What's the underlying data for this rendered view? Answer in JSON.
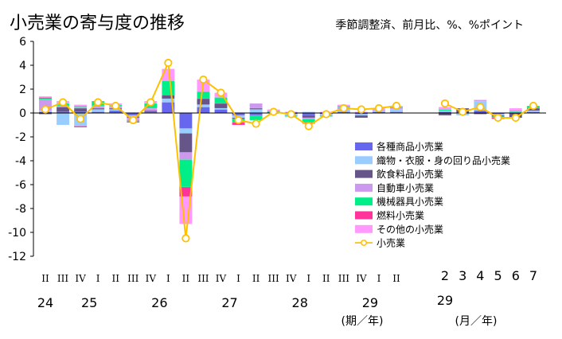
{
  "header": {
    "title": "小売業の寄与度の推移",
    "subtitle": "季節調整済、前月比、%、%ポイント"
  },
  "footer": {
    "period_unit": "(期／年)",
    "month_unit": "(月／年)"
  },
  "colors": {
    "各種商品小売業": "#6666ee",
    "織物・衣服・身の回り品小売業": "#99ccff",
    "飲食料品小売業": "#665588",
    "自動車小売業": "#cc99ee",
    "機械器具小売業": "#00ee88",
    "燃料小売業": "#ff3399",
    "その他の小売業": "#ff99ff",
    "小売業": "#ffc000"
  },
  "chart_data": {
    "type": "bar",
    "stacked": true,
    "ylim": [
      -12,
      6
    ],
    "yticks": [
      6,
      4,
      2,
      0,
      -2,
      -4,
      -6,
      -8,
      -10,
      -12
    ],
    "grid": false,
    "legend_position": "right-middle",
    "quarter_labels": [
      "II",
      "III",
      "IV",
      "I",
      "II",
      "III",
      "IV",
      "I",
      "II",
      "III",
      "IV",
      "I",
      "II",
      "III",
      "IV",
      "I",
      "II",
      "III",
      "IV",
      "I",
      "II"
    ],
    "year_labels": [
      {
        "label": "24",
        "start": 0,
        "end": 0
      },
      {
        "label": "25",
        "start": 1,
        "end": 4
      },
      {
        "label": "26",
        "start": 5,
        "end": 8
      },
      {
        "label": "27",
        "start": 9,
        "end": 12
      },
      {
        "label": "28",
        "start": 13,
        "end": 16
      },
      {
        "label": "29",
        "start": 17,
        "end": 20
      }
    ],
    "month_labels": [
      "2",
      "3",
      "4",
      "5",
      "6",
      "7"
    ],
    "month_year_label": "29",
    "categories": [
      "24 II",
      "24 III",
      "24 IV",
      "25 I",
      "25 II",
      "25 III",
      "25 IV",
      "26 I",
      "26 II",
      "26 III",
      "26 IV",
      "27 I",
      "27 II",
      "27 III",
      "27 IV",
      "28 I",
      "28 II",
      "28 III",
      "28 IV",
      "29 I",
      "29 II",
      "29/2",
      "29/3",
      "29/4",
      "29/5",
      "29/6",
      "29/7"
    ],
    "series": [
      {
        "name": "各種商品小売業",
        "values": [
          0.1,
          0.1,
          0.1,
          0.1,
          0.2,
          -0.2,
          0.1,
          0.9,
          -1.3,
          0.5,
          0.3,
          -0.2,
          -0.2,
          0.1,
          -0.1,
          -0.2,
          -0.1,
          0.1,
          -0.1,
          0.1,
          0.1,
          0.1,
          0.0,
          0.2,
          -0.1,
          0.0,
          0.1
        ]
      },
      {
        "name": "織物・衣服・身の回り品小売業",
        "values": [
          0.1,
          -1.0,
          -1.1,
          0.2,
          0.1,
          -0.1,
          0.0,
          0.3,
          -0.4,
          0.2,
          0.1,
          -0.2,
          0.3,
          0.0,
          -0.1,
          0.1,
          -0.1,
          0.2,
          -0.1,
          0.1,
          0.2,
          0.1,
          -0.2,
          0.8,
          -0.1,
          0.1,
          0.1
        ]
      },
      {
        "name": "飲食料品小売業",
        "values": [
          -0.1,
          0.4,
          0.3,
          0.1,
          0.1,
          -0.1,
          0.1,
          0.3,
          -1.6,
          0.5,
          0.4,
          -0.1,
          0.1,
          0.0,
          0.0,
          -0.2,
          0.0,
          0.0,
          -0.2,
          0.0,
          0.0,
          -0.2,
          0.4,
          -0.1,
          -0.1,
          -0.4,
          0.2
        ]
      },
      {
        "name": "自動車小売業",
        "values": [
          0.9,
          0.1,
          0.1,
          0.2,
          0.2,
          -0.2,
          0.2,
          0.0,
          -0.6,
          0.0,
          0.0,
          0.0,
          0.4,
          0.0,
          0.1,
          -0.1,
          0.0,
          0.2,
          0.0,
          0.1,
          0.1,
          0.0,
          0.0,
          0.1,
          0.0,
          0.0,
          0.0
        ]
      },
      {
        "name": "機械器具小売業",
        "values": [
          0.1,
          0.2,
          0.1,
          0.4,
          0.1,
          -0.1,
          0.4,
          1.2,
          -2.3,
          0.6,
          0.5,
          -0.3,
          -0.4,
          0.1,
          -0.1,
          -0.3,
          -0.1,
          0.1,
          0.0,
          0.0,
          0.1,
          0.1,
          0.0,
          0.0,
          -0.1,
          0.1,
          0.2
        ]
      },
      {
        "name": "燃料小売業",
        "values": [
          0.1,
          0.0,
          -0.1,
          0.0,
          0.0,
          -0.1,
          0.0,
          0.0,
          -0.8,
          0.0,
          0.0,
          -0.2,
          0.0,
          0.0,
          0.0,
          -0.1,
          0.0,
          0.0,
          0.0,
          0.0,
          0.0,
          0.0,
          0.0,
          0.0,
          -0.1,
          0.0,
          0.0
        ]
      },
      {
        "name": "その他の小売業",
        "values": [
          0.1,
          0.2,
          0.1,
          0.0,
          0.1,
          0.0,
          0.2,
          1.0,
          -2.3,
          1.0,
          0.4,
          0.0,
          0.0,
          0.1,
          0.0,
          0.0,
          0.1,
          0.1,
          0.1,
          0.1,
          0.1,
          0.2,
          0.0,
          0.0,
          0.0,
          0.2,
          0.0
        ]
      },
      {
        "name": "小売業",
        "type": "line",
        "values": [
          0.3,
          0.9,
          -0.5,
          0.9,
          0.6,
          -0.6,
          0.9,
          4.2,
          -10.5,
          2.8,
          1.7,
          -0.6,
          -0.9,
          0.1,
          -0.1,
          -1.1,
          -0.1,
          0.4,
          0.3,
          0.4,
          0.6,
          0.8,
          0.1,
          0.5,
          -0.4,
          -0.4,
          0.6
        ]
      }
    ]
  }
}
